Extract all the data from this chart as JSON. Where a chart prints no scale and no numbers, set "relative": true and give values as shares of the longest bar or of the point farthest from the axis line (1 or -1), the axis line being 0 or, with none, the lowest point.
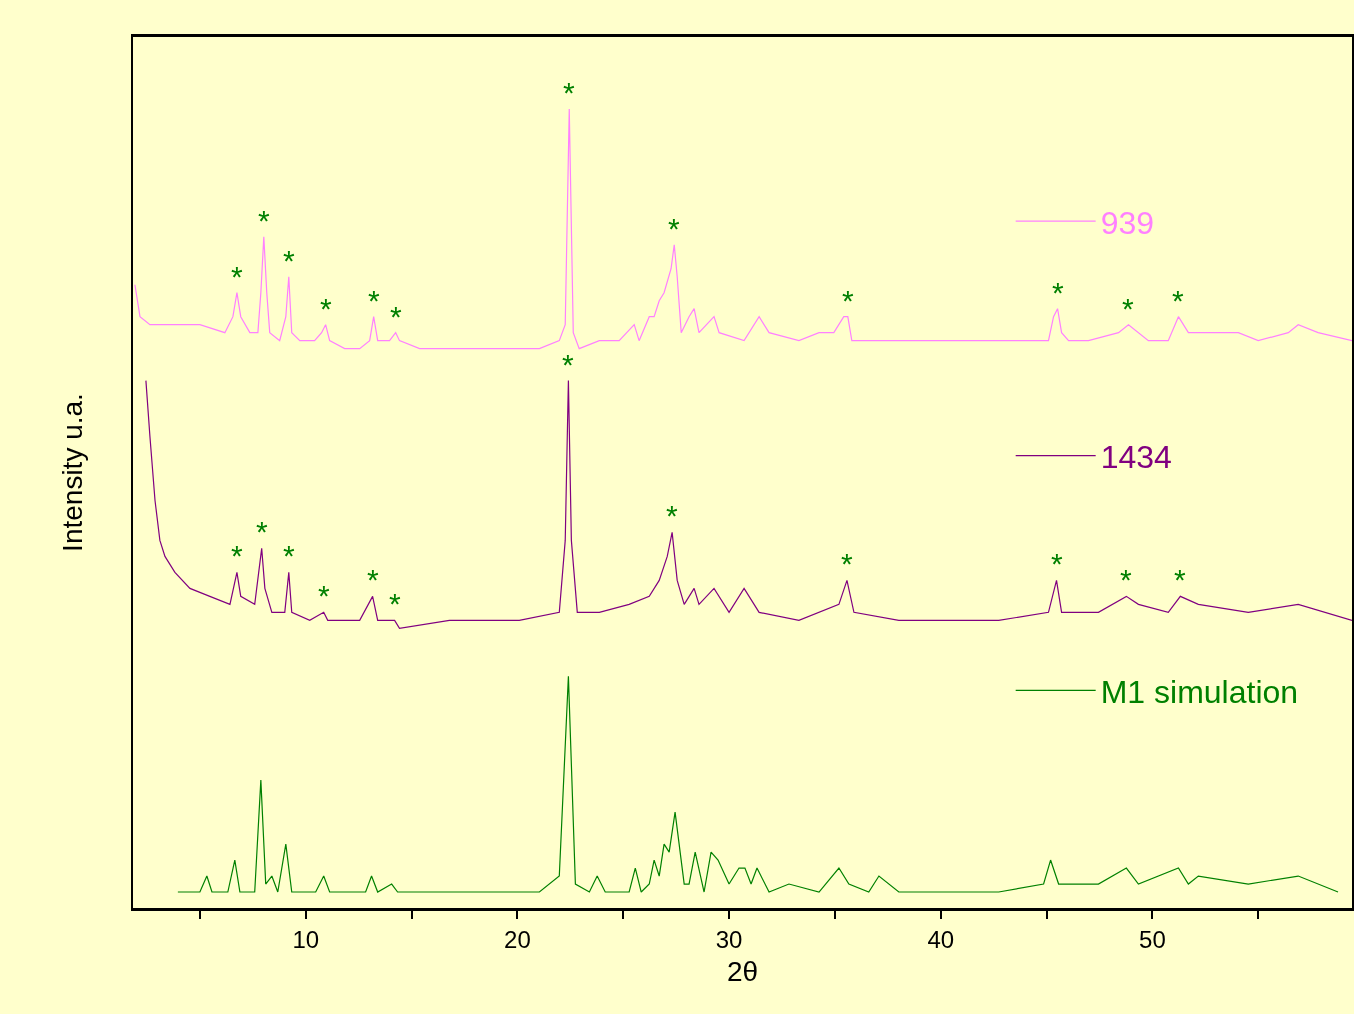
{
  "chart_data": {
    "type": "line",
    "relative": true,
    "xlabel": "2θ",
    "ylabel": "Intensity u.a.",
    "xlim": [
      1.84,
      59.43
    ],
    "xticks": [
      {
        "value": 5,
        "label": null
      },
      10,
      {
        "value": 15,
        "label": null
      },
      20,
      {
        "value": 25,
        "label": null
      },
      30,
      {
        "value": 35,
        "label": null
      },
      40,
      {
        "value": 45,
        "label": null
      },
      50,
      {
        "value": 55,
        "label": null
      }
    ],
    "legend": "right",
    "grid": false,
    "marker": "none",
    "line_style": "solid",
    "series": [
      {
        "name": "939",
        "color": "#ff80ff",
        "x": [
          1.93,
          2.17,
          2.64,
          3.58,
          5.0,
          6.18,
          6.56,
          6.75,
          6.93,
          7.36,
          7.74,
          7.88,
          8.02,
          8.16,
          8.3,
          8.77,
          9.06,
          9.2,
          9.34,
          9.72,
          10.42,
          10.75,
          10.94,
          11.13,
          11.84,
          12.55,
          13.02,
          13.21,
          13.4,
          13.96,
          14.25,
          14.43,
          15.38,
          18.21,
          21.04,
          21.98,
          22.26,
          22.45,
          22.64,
          22.92,
          23.87,
          24.81,
          25.52,
          25.75,
          26.23,
          26.46,
          26.7,
          26.93,
          27.26,
          27.41,
          27.55,
          27.74,
          28.11,
          28.35,
          28.58,
          29.29,
          29.53,
          30.71,
          31.42,
          31.89,
          33.3,
          34.25,
          34.95,
          35.42,
          35.61,
          35.8,
          36.6,
          38.02,
          39.91,
          41.79,
          43.68,
          45.09,
          45.33,
          45.52,
          45.71,
          46.04,
          46.98,
          48.4,
          48.87,
          49.81,
          50.75,
          51.23,
          51.7,
          52.64,
          54.06,
          55.0,
          56.42,
          56.89,
          57.83,
          59.43
        ],
        "values": [
          0.78,
          0.74,
          0.73,
          0.73,
          0.73,
          0.72,
          0.74,
          0.77,
          0.74,
          0.72,
          0.72,
          0.77,
          0.84,
          0.77,
          0.72,
          0.71,
          0.74,
          0.79,
          0.72,
          0.71,
          0.71,
          0.72,
          0.73,
          0.71,
          0.7,
          0.7,
          0.71,
          0.74,
          0.71,
          0.71,
          0.72,
          0.71,
          0.7,
          0.7,
          0.7,
          0.71,
          0.73,
          1.0,
          0.72,
          0.7,
          0.71,
          0.71,
          0.73,
          0.71,
          0.74,
          0.74,
          0.76,
          0.77,
          0.8,
          0.83,
          0.79,
          0.72,
          0.74,
          0.75,
          0.72,
          0.74,
          0.72,
          0.71,
          0.74,
          0.72,
          0.71,
          0.72,
          0.72,
          0.74,
          0.74,
          0.71,
          0.71,
          0.71,
          0.71,
          0.71,
          0.71,
          0.71,
          0.74,
          0.75,
          0.72,
          0.71,
          0.71,
          0.72,
          0.73,
          0.71,
          0.71,
          0.74,
          0.72,
          0.72,
          0.72,
          0.71,
          0.72,
          0.73,
          0.72,
          0.71
        ]
      },
      {
        "name": "1434",
        "color": "#800080",
        "x": [
          2.45,
          2.64,
          2.88,
          3.11,
          3.35,
          3.82,
          4.53,
          5.47,
          6.42,
          6.75,
          6.93,
          7.59,
          7.92,
          8.07,
          8.4,
          9.01,
          9.2,
          9.34,
          10.19,
          10.85,
          11.04,
          12.55,
          13.16,
          13.4,
          14.2,
          14.43,
          16.79,
          20.09,
          21.98,
          22.26,
          22.41,
          22.55,
          22.83,
          23.87,
          25.28,
          26.23,
          26.7,
          27.08,
          27.31,
          27.55,
          27.88,
          28.35,
          28.58,
          29.29,
          30.0,
          30.71,
          31.42,
          33.3,
          35.19,
          35.57,
          35.9,
          38.02,
          40.38,
          42.74,
          45.09,
          45.47,
          45.71,
          47.45,
          48.77,
          49.34,
          50.75,
          51.32,
          52.17,
          54.53,
          56.89,
          59.43
        ],
        "values": [
          0.66,
          0.59,
          0.51,
          0.46,
          0.44,
          0.42,
          0.4,
          0.39,
          0.38,
          0.42,
          0.39,
          0.38,
          0.45,
          0.4,
          0.37,
          0.37,
          0.42,
          0.37,
          0.36,
          0.37,
          0.36,
          0.36,
          0.39,
          0.36,
          0.36,
          0.35,
          0.36,
          0.36,
          0.37,
          0.46,
          0.66,
          0.46,
          0.37,
          0.37,
          0.38,
          0.39,
          0.41,
          0.44,
          0.47,
          0.41,
          0.38,
          0.4,
          0.38,
          0.4,
          0.37,
          0.4,
          0.37,
          0.36,
          0.38,
          0.41,
          0.37,
          0.36,
          0.36,
          0.36,
          0.37,
          0.41,
          0.37,
          0.37,
          0.39,
          0.38,
          0.37,
          0.39,
          0.38,
          0.37,
          0.38,
          0.36
        ]
      },
      {
        "name": "M1 simulation",
        "color": "#008000",
        "x": [
          3.96,
          5.0,
          5.33,
          5.57,
          6.32,
          6.65,
          6.89,
          7.59,
          7.88,
          8.11,
          8.4,
          8.68,
          9.06,
          9.34,
          10.47,
          10.85,
          11.13,
          12.83,
          13.11,
          13.4,
          14.06,
          14.34,
          21.04,
          21.98,
          22.41,
          22.74,
          23.4,
          23.77,
          24.15,
          25.28,
          25.57,
          25.85,
          26.23,
          26.46,
          26.7,
          26.93,
          27.17,
          27.45,
          27.88,
          28.11,
          28.4,
          28.82,
          29.15,
          29.48,
          30.0,
          30.47,
          30.75,
          31.04,
          31.32,
          31.89,
          32.83,
          34.25,
          35.19,
          35.66,
          36.6,
          37.08,
          38.02,
          42.74,
          44.86,
          45.19,
          45.57,
          47.45,
          48.77,
          49.34,
          51.23,
          51.7,
          52.17,
          54.53,
          56.89,
          58.77
        ],
        "values": [
          0.02,
          0.02,
          0.04,
          0.02,
          0.02,
          0.06,
          0.02,
          0.02,
          0.16,
          0.03,
          0.04,
          0.02,
          0.08,
          0.02,
          0.02,
          0.04,
          0.02,
          0.02,
          0.04,
          0.02,
          0.03,
          0.02,
          0.02,
          0.04,
          0.29,
          0.03,
          0.02,
          0.04,
          0.02,
          0.02,
          0.05,
          0.02,
          0.03,
          0.06,
          0.04,
          0.08,
          0.07,
          0.12,
          0.03,
          0.03,
          0.07,
          0.02,
          0.07,
          0.06,
          0.03,
          0.05,
          0.05,
          0.03,
          0.05,
          0.02,
          0.03,
          0.02,
          0.05,
          0.03,
          0.02,
          0.04,
          0.02,
          0.02,
          0.03,
          0.06,
          0.03,
          0.03,
          0.05,
          0.03,
          0.05,
          0.03,
          0.04,
          0.03,
          0.04,
          0.02
        ]
      }
    ],
    "annotations": [
      {
        "text": "*",
        "x": 6.75,
        "y": 0.77
      },
      {
        "text": "*",
        "x": 8.02,
        "y": 0.84
      },
      {
        "text": "*",
        "x": 9.2,
        "y": 0.79
      },
      {
        "text": "*",
        "x": 10.94,
        "y": 0.73
      },
      {
        "text": "*",
        "x": 13.21,
        "y": 0.74
      },
      {
        "text": "*",
        "x": 14.25,
        "y": 0.72
      },
      {
        "text": "*",
        "x": 22.45,
        "y": 1.0
      },
      {
        "text": "*",
        "x": 27.41,
        "y": 0.83
      },
      {
        "text": "*",
        "x": 35.61,
        "y": 0.74
      },
      {
        "text": "*",
        "x": 45.52,
        "y": 0.75
      },
      {
        "text": "*",
        "x": 48.87,
        "y": 0.73
      },
      {
        "text": "*",
        "x": 51.23,
        "y": 0.74
      },
      {
        "text": "*",
        "x": 6.75,
        "y": 0.42
      },
      {
        "text": "*",
        "x": 7.92,
        "y": 0.45
      },
      {
        "text": "*",
        "x": 9.2,
        "y": 0.42
      },
      {
        "text": "*",
        "x": 10.85,
        "y": 0.37
      },
      {
        "text": "*",
        "x": 13.16,
        "y": 0.39
      },
      {
        "text": "*",
        "x": 14.2,
        "y": 0.36
      },
      {
        "text": "*",
        "x": 22.41,
        "y": 0.66
      },
      {
        "text": "*",
        "x": 27.31,
        "y": 0.47
      },
      {
        "text": "*",
        "x": 35.57,
        "y": 0.41
      },
      {
        "text": "*",
        "x": 45.47,
        "y": 0.41
      },
      {
        "text": "*",
        "x": 48.77,
        "y": 0.39
      },
      {
        "text": "*",
        "x": 51.32,
        "y": 0.39
      }
    ]
  }
}
